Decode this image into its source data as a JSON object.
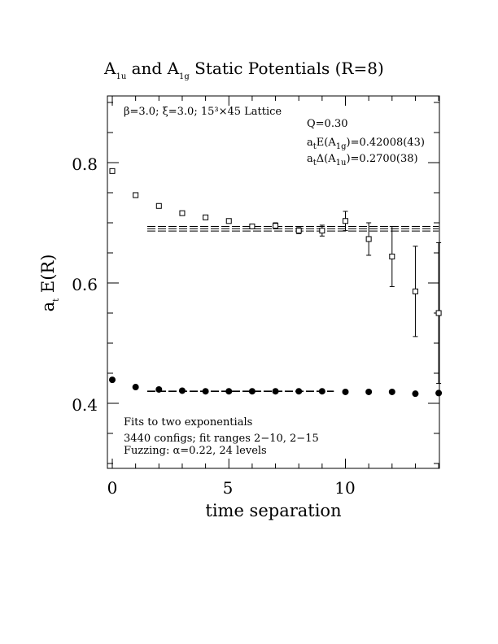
{
  "chart_data": {
    "type": "scatter",
    "title": {
      "parts": [
        "A",
        "1u",
        " and A",
        "1g",
        " Static Potentials (R=8)"
      ]
    },
    "xlabel": "time separation",
    "ylabel": {
      "a": "a",
      "sub": "t",
      "rest": " E(R)"
    },
    "xlim": [
      0,
      14
    ],
    "ylim": [
      0.29,
      0.915
    ],
    "xticks": [
      0,
      5,
      10
    ],
    "xtick_labels": [
      "0",
      "5",
      "10"
    ],
    "yticks": [
      0.4,
      0.6,
      0.8
    ],
    "ytick_labels": [
      "0.4",
      "0.6",
      "0.8"
    ],
    "grid": false,
    "annotations": {
      "lattice": "β=3.0; ξ=3.0; 15³×45 Lattice",
      "q": "Q=0.30",
      "energy": {
        "pre": "a",
        "sub1": "t",
        "mid": "E(A",
        "sub2": "1g",
        "post": ")=0.42008(43)"
      },
      "delta": {
        "pre": "a",
        "sub1": "t",
        "mid": "Δ(A",
        "sub2": "1u",
        "post": ")=0.2700(38)"
      },
      "fits_line1": "Fits to two exponentials",
      "fits_line2": "3440 configs; fit ranges 2−10, 2−15",
      "fits_line3": "Fuzzing: α=0.22, 24 levels"
    },
    "series": [
      {
        "marker": "open-square",
        "points": [
          {
            "x": 0,
            "y": 0.786,
            "err": 0.003
          },
          {
            "x": 1,
            "y": 0.746,
            "err": 0.003
          },
          {
            "x": 2,
            "y": 0.728,
            "err": 0.003
          },
          {
            "x": 3,
            "y": 0.716,
            "err": 0.003
          },
          {
            "x": 4,
            "y": 0.709,
            "err": 0.003
          },
          {
            "x": 5,
            "y": 0.703,
            "err": 0.004
          },
          {
            "x": 6,
            "y": 0.694,
            "err": 0.004
          },
          {
            "x": 7,
            "y": 0.695,
            "err": 0.005
          },
          {
            "x": 8,
            "y": 0.687,
            "err": 0.005
          },
          {
            "x": 9,
            "y": 0.687,
            "err": 0.009
          },
          {
            "x": 10,
            "y": 0.703,
            "err": 0.016
          },
          {
            "x": 11,
            "y": 0.673,
            "err": 0.027
          },
          {
            "x": 12,
            "y": 0.644,
            "err": 0.05
          },
          {
            "x": 13,
            "y": 0.586,
            "err": 0.075
          },
          {
            "x": 14,
            "y": 0.55,
            "err": 0.117
          }
        ]
      },
      {
        "marker": "filled-circle",
        "points": [
          {
            "x": 0,
            "y": 0.439
          },
          {
            "x": 1,
            "y": 0.427
          },
          {
            "x": 2,
            "y": 0.423
          },
          {
            "x": 3,
            "y": 0.421
          },
          {
            "x": 4,
            "y": 0.42
          },
          {
            "x": 5,
            "y": 0.42
          },
          {
            "x": 6,
            "y": 0.42
          },
          {
            "x": 7,
            "y": 0.42
          },
          {
            "x": 8,
            "y": 0.42
          },
          {
            "x": 9,
            "y": 0.42
          },
          {
            "x": 10,
            "y": 0.419
          },
          {
            "x": 11,
            "y": 0.419
          },
          {
            "x": 12,
            "y": 0.419
          },
          {
            "x": 13,
            "y": 0.416
          },
          {
            "x": 14,
            "y": 0.417
          }
        ]
      }
    ],
    "fit_bands": [
      {
        "x_start": 1.5,
        "x_end": 14,
        "center": 0.6901,
        "half_width": 0.0038
      },
      {
        "x_start": 1.5,
        "x_end": 9.5,
        "center": 0.42008,
        "half_width": 0.00043
      }
    ]
  }
}
